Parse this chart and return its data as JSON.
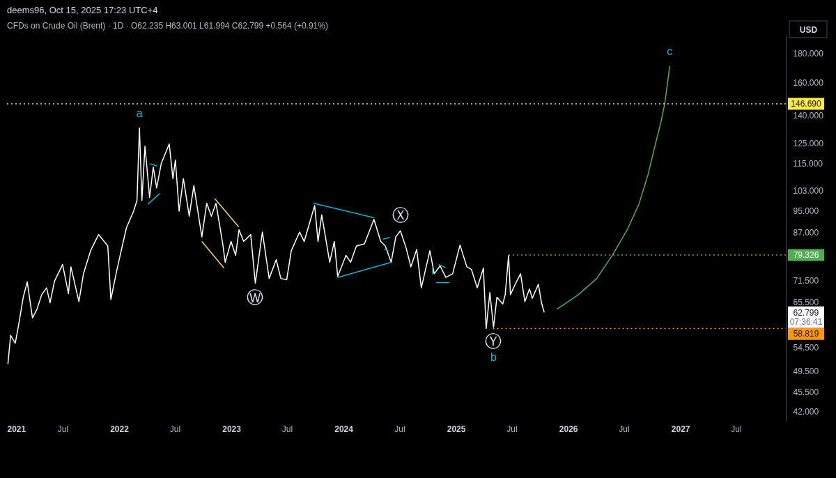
{
  "chart_data": {
    "type": "line",
    "title": "deems96, Oct 15, 2025 17:23 UTC+4",
    "subtitle": "CFDs on Crude Oil (Brent) · 1D · O62.235 H63.001 L61.994 C62.799 +0.564 (+0.91%)",
    "ylabel": "USD",
    "log": "y",
    "grid": false,
    "xlim": [
      "2021-01-01",
      "2027-12-10"
    ],
    "xticks": [
      {
        "value": "2021-01-01",
        "label": "2021"
      },
      {
        "value": "2021-07-01",
        "label": "Jul"
      },
      {
        "value": "2022-01-01",
        "label": "2022"
      },
      {
        "value": "2022-07-01",
        "label": "Jul"
      },
      {
        "value": "2023-01-01",
        "label": "2023"
      },
      {
        "value": "2023-07-01",
        "label": "Jul"
      },
      {
        "value": "2024-01-01",
        "label": "2024"
      },
      {
        "value": "2024-07-01",
        "label": "Jul"
      },
      {
        "value": "2025-01-01",
        "label": "2025"
      },
      {
        "value": "2025-07-01",
        "label": "Jul"
      },
      {
        "value": "2026-01-01",
        "label": "2026"
      },
      {
        "value": "2026-07-01",
        "label": "Jul"
      },
      {
        "value": "2027-01-01",
        "label": "2027"
      },
      {
        "value": "2027-07-01",
        "label": "Jul"
      }
    ],
    "ylim": [
      40.4,
      194.2
    ],
    "yticks": [
      {
        "value": 42,
        "label": "42.000"
      },
      {
        "value": 45.5,
        "label": "45.500"
      },
      {
        "value": 49.5,
        "label": "49.500"
      },
      {
        "value": 54.5,
        "label": "54.500"
      },
      {
        "value": 62.799,
        "label": "62.799"
      },
      {
        "value": 65.5,
        "label": "65.500"
      },
      {
        "value": 71.5,
        "label": "71.500"
      },
      {
        "value": 87,
        "label": "87.000"
      },
      {
        "value": 95,
        "label": "95.000"
      },
      {
        "value": 103,
        "label": "103.000"
      },
      {
        "value": 115,
        "label": "115.000"
      },
      {
        "value": 125,
        "label": "125.000"
      },
      {
        "value": 140,
        "label": "140.000"
      },
      {
        "value": 160,
        "label": "160.000"
      },
      {
        "value": 180,
        "label": "180.000"
      }
    ],
    "series": [
      {
        "color": "#ffffff",
        "x": [
          "2021-01-04",
          "2021-01-13",
          "2021-01-28",
          "2021-02-08",
          "2021-02-23",
          "2021-03-08",
          "2021-03-25",
          "2021-04-09",
          "2021-04-24",
          "2021-05-10",
          "2021-05-21",
          "2021-06-05",
          "2021-07-01",
          "2021-07-20",
          "2021-07-28",
          "2021-08-23",
          "2021-09-07",
          "2021-09-30",
          "2021-10-26",
          "2021-11-25",
          "2021-12-05",
          "2021-12-22",
          "2022-01-06",
          "2022-01-25",
          "2022-02-17",
          "2022-02-28",
          "2022-03-08",
          "2022-03-16",
          "2022-03-26",
          "2022-04-10",
          "2022-04-22",
          "2022-05-03",
          "2022-05-18",
          "2022-06-13",
          "2022-06-25",
          "2022-07-03",
          "2022-07-15",
          "2022-07-29",
          "2022-08-17",
          "2022-09-01",
          "2022-09-27",
          "2022-10-13",
          "2022-10-28",
          "2022-11-12",
          "2022-12-04",
          "2022-12-12",
          "2022-12-31",
          "2023-01-15",
          "2023-01-26",
          "2023-02-10",
          "2023-03-05",
          "2023-03-20",
          "2023-04-12",
          "2023-05-04",
          "2023-05-27",
          "2023-06-11",
          "2023-06-30",
          "2023-07-15",
          "2023-08-11",
          "2023-08-26",
          "2023-09-29",
          "2023-10-10",
          "2023-10-22",
          "2023-11-17",
          "2023-12-02",
          "2023-12-13",
          "2024-01-09",
          "2024-01-24",
          "2024-02-12",
          "2024-03-09",
          "2024-04-09",
          "2024-05-01",
          "2024-05-16",
          "2024-06-04",
          "2024-06-19",
          "2024-07-04",
          "2024-07-23",
          "2024-08-07",
          "2024-08-26",
          "2024-09-10",
          "2024-10-08",
          "2024-10-22",
          "2024-11-10",
          "2024-11-29",
          "2024-12-21",
          "2025-01-14",
          "2025-02-05",
          "2025-02-20",
          "2025-03-11",
          "2025-03-31",
          "2025-04-09",
          "2025-04-21",
          "2025-05-03",
          "2025-05-14",
          "2025-06-02",
          "2025-06-10",
          "2025-06-21",
          "2025-06-27",
          "2025-07-14",
          "2025-07-30",
          "2025-08-13",
          "2025-08-28",
          "2025-09-06",
          "2025-09-26",
          "2025-10-06",
          "2025-10-15"
        ],
        "values": [
          50.9,
          57.2,
          55.4,
          59.7,
          66.8,
          71.1,
          61.4,
          63.7,
          67.5,
          69.4,
          65.3,
          71.4,
          76.3,
          67.8,
          75.6,
          65.6,
          73.5,
          80.7,
          86.2,
          82.3,
          66.2,
          73.5,
          80.0,
          88.7,
          94.8,
          99.0,
          132.9,
          99.0,
          123.5,
          100.3,
          113.4,
          104.2,
          115.1,
          124.6,
          108.2,
          116.7,
          94.8,
          108.2,
          92.9,
          105.2,
          85.4,
          97.9,
          92.9,
          97.9,
          83.0,
          77.0,
          83.8,
          79.2,
          87.9,
          83.8,
          86.2,
          70.7,
          87.1,
          72.1,
          77.8,
          72.1,
          71.7,
          80.7,
          87.1,
          83.8,
          97.0,
          83.8,
          93.4,
          77.0,
          83.8,
          72.7,
          79.2,
          77.0,
          82.3,
          83.0,
          91.7,
          83.8,
          82.3,
          77.0,
          85.4,
          87.5,
          81.5,
          75.6,
          81.1,
          69.4,
          80.7,
          73.5,
          75.9,
          72.4,
          73.5,
          82.6,
          75.6,
          74.8,
          69.4,
          75.2,
          58.8,
          68.1,
          59.1,
          66.8,
          65.0,
          67.5,
          79.2,
          67.5,
          70.7,
          73.5,
          65.6,
          69.1,
          66.5,
          70.4,
          65.3,
          62.799
        ]
      },
      {
        "color": "#4caf50",
        "line_style": "dotted",
        "x": [
          "2025-06-21",
          "2027-12-10"
        ],
        "values": [
          79.326,
          79.326
        ],
        "value_labels": [
          null,
          "79.326"
        ]
      },
      {
        "color": "#ff9800",
        "line_style": "dotted",
        "x": [
          "2025-05-01",
          "2027-12-10"
        ],
        "values": [
          58.819,
          58.819
        ],
        "value_labels": [
          null,
          "58.819"
        ]
      },
      {
        "color": "#00bcd4",
        "x": [
          "2022-04-10",
          "2022-05-05"
        ],
        "values": [
          115.0,
          113.9
        ]
      },
      {
        "color": "#00bcd4",
        "x": [
          "2022-04-04",
          "2022-05-13"
        ],
        "values": [
          97.5,
          101.8
        ]
      },
      {
        "color": "#fdd835",
        "x": [
          "2022-11-08",
          "2023-01-25"
        ],
        "values": [
          99.8,
          88.9
        ]
      },
      {
        "color": "#fdd835",
        "x": [
          "2022-09-27",
          "2022-12-08"
        ],
        "values": [
          83.8,
          75.2
        ]
      },
      {
        "color": "#00bcd4",
        "x": [
          "2023-09-25",
          "2024-04-09"
        ],
        "values": [
          97.9,
          92.3
        ]
      },
      {
        "color": "#00bcd4",
        "x": [
          "2023-12-13",
          "2024-06-04"
        ],
        "values": [
          72.4,
          77.0
        ]
      },
      {
        "color": "#00bcd4",
        "x": [
          "2024-05-09",
          "2024-05-30"
        ],
        "values": [
          84.6,
          85.2
        ]
      },
      {
        "color": "#00bcd4",
        "x": [
          "2024-05-13",
          "2024-05-26"
        ],
        "values": [
          81.3,
          80.7
        ]
      },
      {
        "color": "#00bcd4",
        "x": [
          "2024-10-17",
          "2024-10-17"
        ],
        "values": [
          75.2,
          73.3
        ]
      },
      {
        "color": "#00bcd4",
        "x": [
          "2024-11-05",
          "2024-11-27"
        ],
        "values": [
          76.3,
          75.4
        ]
      },
      {
        "color": "#00bcd4",
        "x": [
          "2024-10-28",
          "2024-12-10"
        ],
        "values": [
          70.9,
          70.9
        ]
      },
      {
        "color": "#4caf50",
        "x": [
          "2025-11-25",
          "2026-02-03",
          "2026-04-04",
          "2026-05-27",
          "2026-07-12",
          "2026-08-19",
          "2026-09-18",
          "2026-10-10",
          "2026-10-29",
          "2026-11-11",
          "2026-11-21",
          "2026-11-27"
        ],
        "values": [
          63.6,
          67.5,
          72.1,
          79.6,
          87.9,
          97.5,
          110.2,
          123.5,
          135.7,
          146.8,
          160.8,
          171.0
        ]
      }
    ],
    "ref_lines": [
      {
        "axis": "y",
        "value": 146.69,
        "label": "146.690",
        "color": "#ffeb3b",
        "line_style": "dotted"
      }
    ],
    "annotations": [
      {
        "text": "a",
        "x": "2022-03-08",
        "y": 132.9
      },
      {
        "text": "Ⓦ",
        "x": "2023-03-20",
        "y": 70.7
      },
      {
        "text": "Ⓧ",
        "x": "2024-07-04",
        "y": 87.5
      },
      {
        "text": "Ⓨ",
        "x": "2025-05-03",
        "y": 59.1
      },
      {
        "text": "b",
        "x": "2025-05-03",
        "y": 59.1
      },
      {
        "text": "c",
        "x": "2026-11-27",
        "y": 171.0
      },
      "07:36:41"
    ]
  }
}
